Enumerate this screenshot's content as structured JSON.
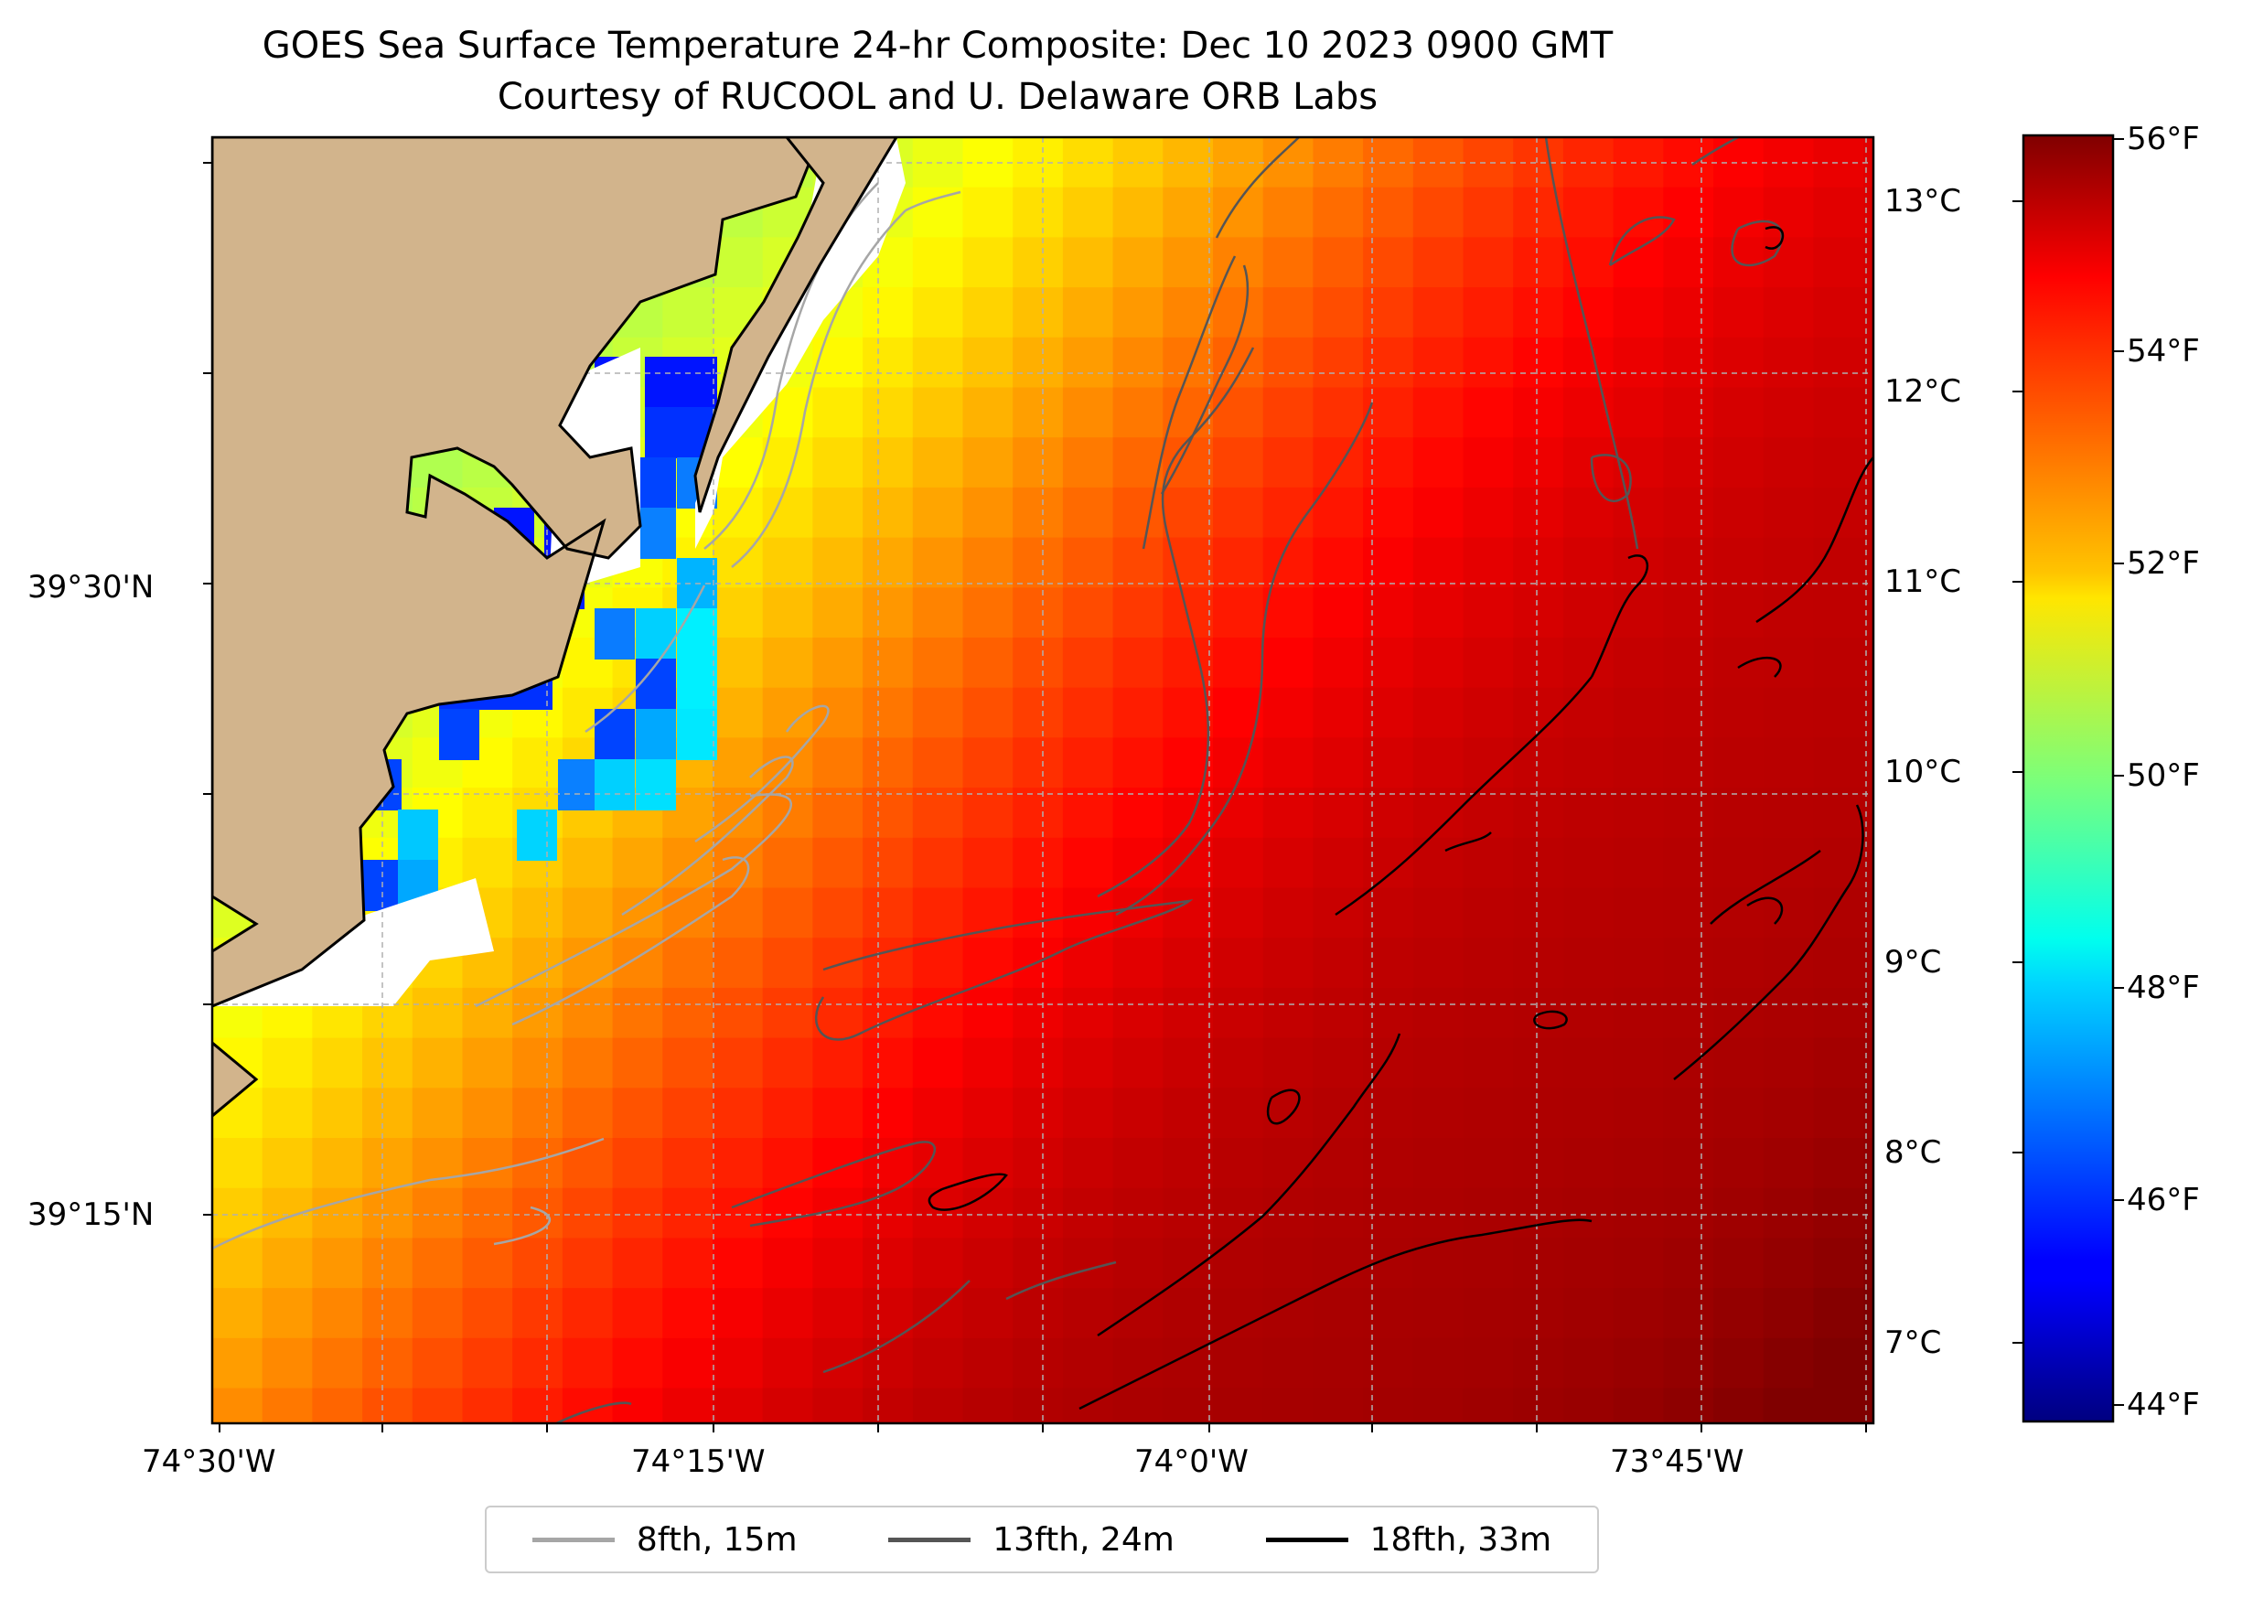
{
  "title": "GOES Sea Surface Temperature 24-hr Composite: Dec 10 2023 0900 GMT",
  "subtitle": "Courtesy of RUCOOL and U. Delaware ORB Labs",
  "x_ticks": [
    "74°30'W",
    "74°15'W",
    "74°0'W",
    "73°45'W"
  ],
  "y_ticks": [
    "39°30'N",
    "39°15'N"
  ],
  "colorbar": {
    "celsius_ticks": [
      "13°C",
      "12°C",
      "11°C",
      "10°C",
      "9°C",
      "8°C",
      "7°C"
    ],
    "fahrenheit_ticks": [
      "56°F",
      "54°F",
      "52°F",
      "50°F",
      "48°F",
      "46°F",
      "44°F"
    ],
    "colormap": "jet",
    "range_f": [
      44,
      56
    ]
  },
  "legend": [
    {
      "label": "8fth, 15m",
      "color": "#a6a6a6"
    },
    {
      "label": "13fth, 24m",
      "color": "#555555"
    },
    {
      "label": "18fth, 33m",
      "color": "#000000"
    }
  ],
  "colors": {
    "land": "#d2b48c",
    "coast": "#000000",
    "grid": "#b0b0b0"
  }
}
